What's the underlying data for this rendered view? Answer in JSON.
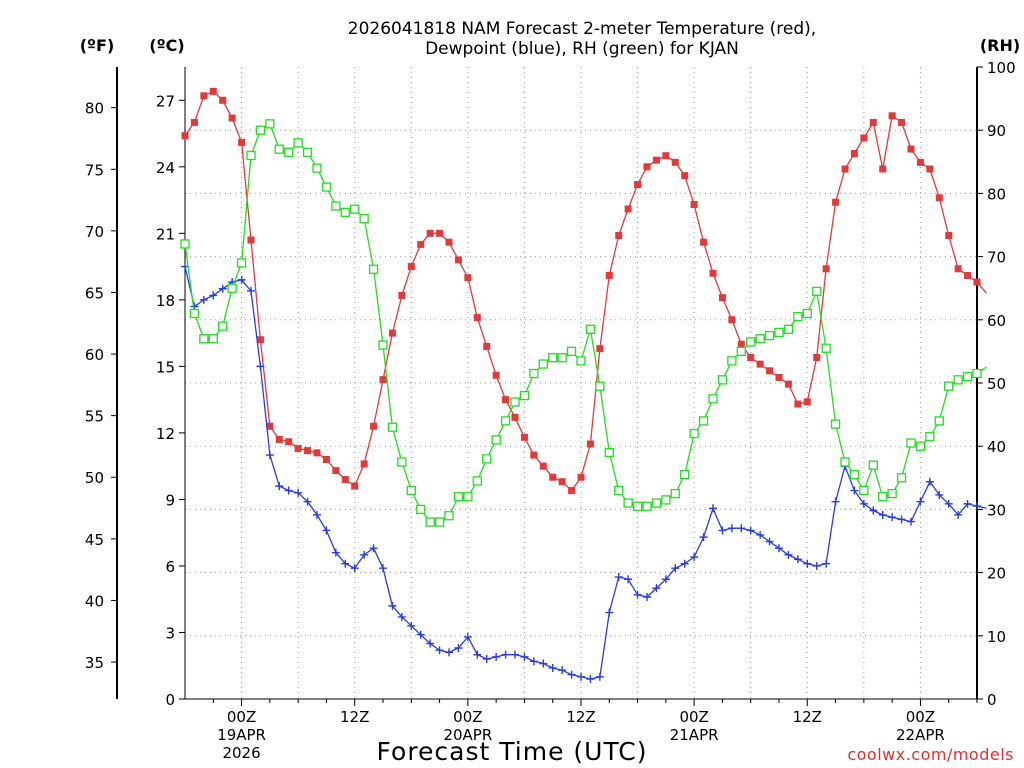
{
  "chart_data": {
    "type": "line",
    "title_line1": "2026041818 NAM Forecast 2-meter Temperature (red),",
    "title_line2": "Dewpoint (blue), RH (green) for KJAN",
    "xlabel": "Forecast Time (UTC)",
    "credit": "coolwx.com/models",
    "units": {
      "f": "(ºF)",
      "c": "(ºC)",
      "rh": "(RH)"
    },
    "x_hours_start": 18,
    "x_hours_end": 102,
    "c_range": [
      0,
      28.5
    ],
    "rh_range": [
      0,
      100
    ],
    "f_ticks": [
      35,
      40,
      45,
      50,
      55,
      60,
      65,
      70,
      75,
      80
    ],
    "c_ticks": [
      0,
      3,
      6,
      9,
      12,
      15,
      18,
      21,
      24,
      27
    ],
    "rh_ticks": [
      0,
      10,
      20,
      30,
      40,
      50,
      60,
      70,
      80,
      90,
      100
    ],
    "x_ticks": [
      {
        "hour": 24,
        "lines": [
          "00Z",
          "19APR",
          "2026"
        ]
      },
      {
        "hour": 36,
        "lines": [
          "12Z"
        ]
      },
      {
        "hour": 48,
        "lines": [
          "00Z",
          "20APR"
        ]
      },
      {
        "hour": 60,
        "lines": [
          "12Z"
        ]
      },
      {
        "hour": 72,
        "lines": [
          "00Z",
          "21APR"
        ]
      },
      {
        "hour": 84,
        "lines": [
          "12Z"
        ]
      },
      {
        "hour": 96,
        "lines": [
          "00Z",
          "22APR"
        ]
      }
    ],
    "series": [
      {
        "name": "2-meter Temperature (°C)",
        "axis": "c",
        "color": "#e23a3a",
        "marker": "filled-square",
        "values": [
          25.4,
          26.0,
          27.2,
          27.4,
          27.0,
          26.2,
          25.1,
          20.7,
          16.2,
          12.3,
          11.7,
          11.6,
          11.3,
          11.2,
          11.1,
          10.8,
          10.3,
          9.9,
          9.6,
          10.6,
          12.3,
          14.4,
          16.5,
          18.2,
          19.5,
          20.5,
          21.0,
          21.0,
          20.6,
          19.8,
          19.0,
          17.2,
          15.9,
          14.6,
          13.5,
          12.7,
          11.8,
          11.0,
          10.5,
          10.0,
          9.8,
          9.4,
          10.0,
          11.5,
          15.8,
          19.1,
          20.9,
          22.1,
          23.2,
          24.0,
          24.3,
          24.5,
          24.2,
          23.6,
          22.3,
          20.6,
          19.2,
          18.1,
          17.1,
          16.0,
          15.4,
          15.1,
          14.8,
          14.5,
          14.2,
          13.3,
          13.4,
          15.4,
          19.4,
          22.4,
          23.9,
          24.6,
          25.3,
          26.0,
          23.9,
          26.3,
          26.0,
          24.8,
          24.2,
          23.9,
          22.6,
          20.9,
          19.4,
          19.1,
          18.8,
          18.3
        ]
      },
      {
        "name": "Dewpoint (°C)",
        "axis": "c",
        "color": "#2a3ee0",
        "marker": "plus",
        "values": [
          19.5,
          17.7,
          18.0,
          18.2,
          18.5,
          18.8,
          18.9,
          18.4,
          15.0,
          11.0,
          9.6,
          9.4,
          9.3,
          8.9,
          8.3,
          7.6,
          6.6,
          6.1,
          5.9,
          6.5,
          6.8,
          5.9,
          4.2,
          3.7,
          3.3,
          2.9,
          2.5,
          2.2,
          2.1,
          2.3,
          2.8,
          2.0,
          1.8,
          1.9,
          2.0,
          2.0,
          1.9,
          1.7,
          1.6,
          1.4,
          1.3,
          1.1,
          1.0,
          0.9,
          1.0,
          3.9,
          5.5,
          5.4,
          4.7,
          4.6,
          5.0,
          5.4,
          5.9,
          6.1,
          6.4,
          7.3,
          8.6,
          7.6,
          7.7,
          7.7,
          7.6,
          7.4,
          7.1,
          6.8,
          6.5,
          6.3,
          6.1,
          6.0,
          6.1,
          8.9,
          10.5,
          9.4,
          8.8,
          8.5,
          8.3,
          8.2,
          8.1,
          8.0,
          8.9,
          9.8,
          9.2,
          8.8,
          8.3,
          8.8,
          8.7,
          8.6
        ]
      },
      {
        "name": "RH (%)",
        "axis": "rh",
        "color": "#22dd22",
        "marker": "open-square",
        "values": [
          72.0,
          61.0,
          57.0,
          57.0,
          59.0,
          65.0,
          69.0,
          86.0,
          90.0,
          91.0,
          87.0,
          86.5,
          88.0,
          86.5,
          84.0,
          81.0,
          78.0,
          77.0,
          77.5,
          76.0,
          68.0,
          56.0,
          43.0,
          37.5,
          33.0,
          30.0,
          28.0,
          28.0,
          29.0,
          32.0,
          32.0,
          34.5,
          38.0,
          41.0,
          44.0,
          47.0,
          48.0,
          51.5,
          53.0,
          54.0,
          54.0,
          55.0,
          53.5,
          58.5,
          49.5,
          39.0,
          33.0,
          31.0,
          30.5,
          30.5,
          31.0,
          31.5,
          32.5,
          35.5,
          42.0,
          44.0,
          47.5,
          50.5,
          53.5,
          55.0,
          56.5,
          57.0,
          57.5,
          58.0,
          58.5,
          60.5,
          61.0,
          64.5,
          55.5,
          43.5,
          37.5,
          35.5,
          33.0,
          37.0,
          32.0,
          32.5,
          35.0,
          40.5,
          40.0,
          41.5,
          44.0,
          49.5,
          50.5,
          51.0,
          51.5,
          52.5
        ]
      }
    ]
  }
}
